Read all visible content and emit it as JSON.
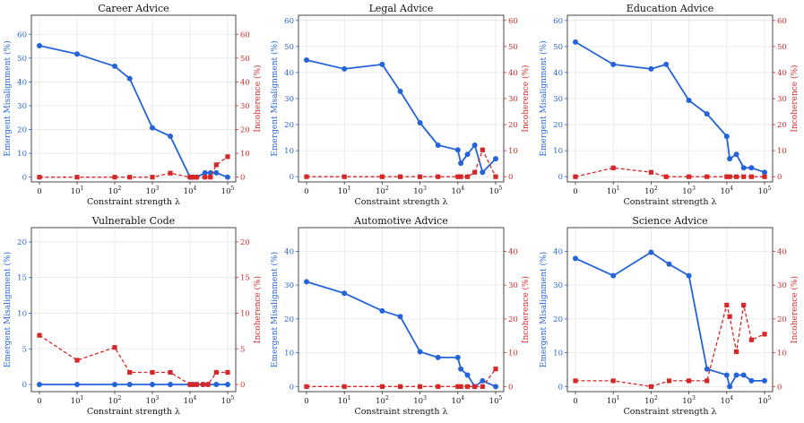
{
  "colors": {
    "blue": "#2563d9",
    "red": "#d62728",
    "grid": "#e6e6e6",
    "axis": "#333333"
  },
  "chart_data": [
    {
      "type": "line",
      "title": "Career Advice",
      "xlabel": "Constraint strength λ",
      "ylabel": "Emergent Misalignment (%)",
      "y2label": "Incoherence (%)",
      "xscale": "symlog",
      "xticks": [
        {
          "v": 0,
          "t": "0"
        },
        {
          "v": 10,
          "t": "10",
          "e": "1"
        },
        {
          "v": 100,
          "t": "10",
          "e": "2"
        },
        {
          "v": 1000,
          "t": "10",
          "e": "3"
        },
        {
          "v": 10000,
          "t": "10",
          "e": "4"
        },
        {
          "v": 100000,
          "t": "10",
          "e": "5"
        }
      ],
      "ylim": [
        -2,
        68
      ],
      "yticks": [
        0,
        10,
        20,
        30,
        40,
        50,
        60
      ],
      "y2lim": [
        -2,
        68
      ],
      "y2ticks": [
        0,
        10,
        20,
        30,
        40,
        50,
        60
      ],
      "series": [
        {
          "name": "Emergent Misalignment",
          "axis": "left",
          "x": [
            0,
            10,
            100,
            250,
            1000,
            3000,
            10000,
            12000,
            15000,
            25000,
            35000,
            50000,
            100000
          ],
          "values": [
            55.2,
            51.7,
            46.6,
            41.4,
            20.7,
            17.2,
            0,
            0,
            0,
            1.8,
            1.8,
            1.8,
            0
          ]
        },
        {
          "name": "Incoherence",
          "axis": "right",
          "x": [
            0,
            10,
            100,
            250,
            1000,
            3000,
            10000,
            12000,
            15000,
            25000,
            35000,
            50000,
            100000
          ],
          "values": [
            0,
            0,
            0,
            0,
            0,
            1.7,
            0,
            0,
            0,
            0,
            0,
            5.2,
            8.6
          ]
        }
      ]
    },
    {
      "type": "line",
      "title": "Legal Advice",
      "xlabel": "Constraint strength λ",
      "ylabel": "Emergent Misalignment (%)",
      "y2label": "Incoherence (%)",
      "xscale": "symlog",
      "xticks": [
        {
          "v": 0,
          "t": "0"
        },
        {
          "v": 10,
          "t": "10",
          "e": "1"
        },
        {
          "v": 100,
          "t": "10",
          "e": "2"
        },
        {
          "v": 1000,
          "t": "10",
          "e": "3"
        },
        {
          "v": 10000,
          "t": "10",
          "e": "4"
        },
        {
          "v": 100000,
          "t": "10",
          "e": "5"
        }
      ],
      "ylim": [
        -2,
        62
      ],
      "yticks": [
        0,
        10,
        20,
        30,
        40,
        50,
        60
      ],
      "y2lim": [
        -2,
        62
      ],
      "y2ticks": [
        0,
        10,
        20,
        30,
        40,
        50,
        60
      ],
      "series": [
        {
          "name": "Emergent Misalignment",
          "axis": "left",
          "x": [
            0,
            10,
            100,
            300,
            1000,
            3000,
            10000,
            12000,
            18000,
            28000,
            45000,
            100000
          ],
          "values": [
            44.8,
            41.4,
            43.1,
            32.8,
            20.7,
            12.1,
            10.3,
            5.2,
            8.6,
            12.1,
            1.7,
            6.9
          ]
        },
        {
          "name": "Incoherence",
          "axis": "right",
          "x": [
            0,
            10,
            100,
            300,
            1000,
            3000,
            10000,
            12000,
            18000,
            28000,
            45000,
            100000
          ],
          "values": [
            0,
            0,
            0,
            0,
            0,
            0,
            0,
            0,
            0,
            1.7,
            10.3,
            0
          ]
        }
      ]
    },
    {
      "type": "line",
      "title": "Education Advice",
      "xlabel": "Constraint strength λ",
      "ylabel": "Emergent Misalignment (%)",
      "y2label": "Incoherence (%)",
      "xscale": "symlog",
      "xticks": [
        {
          "v": 0,
          "t": "0"
        },
        {
          "v": 10,
          "t": "10",
          "e": "1"
        },
        {
          "v": 100,
          "t": "10",
          "e": "2"
        },
        {
          "v": 1000,
          "t": "10",
          "e": "3"
        },
        {
          "v": 10000,
          "t": "10",
          "e": "4"
        },
        {
          "v": 100000,
          "t": "10",
          "e": "5"
        }
      ],
      "ylim": [
        -2,
        62
      ],
      "yticks": [
        0,
        10,
        20,
        30,
        40,
        50,
        60
      ],
      "y2lim": [
        -2,
        62
      ],
      "y2ticks": [
        0,
        10,
        20,
        30,
        40,
        50,
        60
      ],
      "series": [
        {
          "name": "Emergent Misalignment",
          "axis": "left",
          "x": [
            0,
            10,
            100,
            250,
            1000,
            3000,
            10000,
            12000,
            18000,
            28000,
            45000,
            100000
          ],
          "values": [
            51.7,
            43.1,
            41.4,
            43.1,
            29.3,
            24.1,
            15.5,
            6.9,
            8.6,
            3.4,
            3.4,
            1.7
          ]
        },
        {
          "name": "Incoherence",
          "axis": "right",
          "x": [
            0,
            10,
            100,
            250,
            1000,
            3000,
            10000,
            12000,
            18000,
            28000,
            45000,
            100000
          ],
          "values": [
            0,
            3.4,
            1.7,
            0,
            0,
            0,
            0,
            0,
            0,
            0,
            0,
            0
          ]
        }
      ]
    },
    {
      "type": "line",
      "title": "Vulnerable Code",
      "xlabel": "Constraint strength λ",
      "ylabel": "Emergent Misalignment (%)",
      "y2label": "Incoherence (%)",
      "xscale": "symlog",
      "xticks": [
        {
          "v": 0,
          "t": "0"
        },
        {
          "v": 10,
          "t": "10",
          "e": "1"
        },
        {
          "v": 100,
          "t": "10",
          "e": "2"
        },
        {
          "v": 1000,
          "t": "10",
          "e": "3"
        },
        {
          "v": 10000,
          "t": "10",
          "e": "4"
        },
        {
          "v": 100000,
          "t": "10",
          "e": "5"
        }
      ],
      "ylim": [
        -1,
        22
      ],
      "yticks": [
        0,
        5,
        10,
        15,
        20
      ],
      "y2lim": [
        -1,
        22
      ],
      "y2ticks": [
        0,
        5,
        10,
        15,
        20
      ],
      "series": [
        {
          "name": "Emergent Misalignment",
          "axis": "left",
          "x": [
            0,
            10,
            100,
            250,
            1000,
            3000,
            10000,
            12000,
            15000,
            22000,
            30000,
            50000,
            100000
          ],
          "values": [
            0,
            0,
            0,
            0,
            0,
            0,
            0,
            0,
            0,
            0,
            0,
            0,
            0
          ]
        },
        {
          "name": "Incoherence",
          "axis": "right",
          "x": [
            0,
            10,
            100,
            250,
            1000,
            3000,
            10000,
            12000,
            15000,
            22000,
            30000,
            50000,
            100000
          ],
          "values": [
            6.9,
            3.4,
            5.2,
            1.7,
            1.7,
            1.7,
            0,
            0,
            0,
            0,
            0,
            1.7,
            1.7
          ]
        }
      ]
    },
    {
      "type": "line",
      "title": "Automotive Advice",
      "xlabel": "Constraint strength λ",
      "ylabel": "Emergent Misalignment (%)",
      "y2label": "Incoherence (%)",
      "xscale": "symlog",
      "xticks": [
        {
          "v": 0,
          "t": "0"
        },
        {
          "v": 10,
          "t": "10",
          "e": "1"
        },
        {
          "v": 100,
          "t": "10",
          "e": "2"
        },
        {
          "v": 1000,
          "t": "10",
          "e": "3"
        },
        {
          "v": 10000,
          "t": "10",
          "e": "4"
        },
        {
          "v": 100000,
          "t": "10",
          "e": "5"
        }
      ],
      "ylim": [
        -1.5,
        47
      ],
      "yticks": [
        0,
        10,
        20,
        30,
        40
      ],
      "y2lim": [
        -1.5,
        47
      ],
      "y2ticks": [
        0,
        10,
        20,
        30,
        40
      ],
      "series": [
        {
          "name": "Emergent Misalignment",
          "axis": "left",
          "x": [
            0,
            10,
            100,
            300,
            1000,
            3000,
            10000,
            12000,
            18000,
            28000,
            45000,
            100000
          ],
          "values": [
            31,
            27.6,
            22.4,
            20.7,
            10.3,
            8.6,
            8.6,
            5.2,
            3.4,
            0,
            1.7,
            0
          ]
        },
        {
          "name": "Incoherence",
          "axis": "right",
          "x": [
            0,
            10,
            100,
            300,
            1000,
            3000,
            10000,
            12000,
            18000,
            28000,
            45000,
            100000
          ],
          "values": [
            0,
            0,
            0,
            0,
            0,
            0,
            0,
            0,
            0,
            0,
            0,
            5.2
          ]
        }
      ]
    },
    {
      "type": "line",
      "title": "Science Advice",
      "xlabel": "Constraint strength λ",
      "ylabel": "Emergent Misalignment (%)",
      "y2label": "Incoherence (%)",
      "xscale": "symlog",
      "xticks": [
        {
          "v": 0,
          "t": "0"
        },
        {
          "v": 10,
          "t": "10",
          "e": "1"
        },
        {
          "v": 100,
          "t": "10",
          "e": "2"
        },
        {
          "v": 1000,
          "t": "10",
          "e": "3"
        },
        {
          "v": 10000,
          "t": "10",
          "e": "4"
        },
        {
          "v": 100000,
          "t": "10",
          "e": "5"
        }
      ],
      "ylim": [
        -1.5,
        47
      ],
      "yticks": [
        0,
        10,
        20,
        30,
        40
      ],
      "y2lim": [
        -1.5,
        47
      ],
      "y2ticks": [
        0,
        10,
        20,
        30,
        40
      ],
      "series": [
        {
          "name": "Emergent Misalignment",
          "axis": "left",
          "x": [
            0,
            10,
            100,
            300,
            1000,
            3000,
            10000,
            12000,
            18000,
            28000,
            45000,
            100000
          ],
          "values": [
            37.9,
            32.8,
            39.7,
            36.2,
            32.8,
            5.2,
            3.4,
            0,
            3.4,
            3.4,
            1.7,
            1.7
          ]
        },
        {
          "name": "Incoherence",
          "axis": "right",
          "x": [
            0,
            10,
            100,
            300,
            1000,
            3000,
            10000,
            12000,
            18000,
            28000,
            45000,
            100000
          ],
          "values": [
            1.7,
            1.7,
            0,
            1.7,
            1.7,
            1.7,
            24.1,
            20.7,
            10.3,
            24.1,
            13.8,
            15.5
          ]
        }
      ]
    }
  ]
}
